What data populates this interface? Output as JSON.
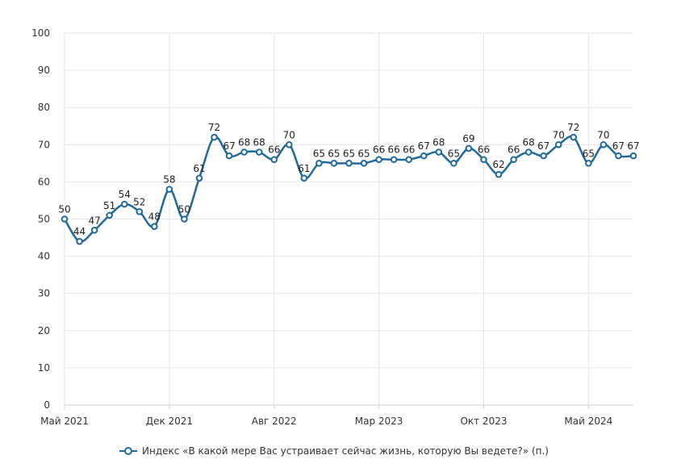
{
  "chart_data": {
    "type": "line",
    "title": "",
    "xlabel": "",
    "ylabel": "",
    "ylim": [
      0,
      100
    ],
    "yticks": [
      0,
      10,
      20,
      30,
      40,
      50,
      60,
      70,
      80,
      90,
      100
    ],
    "grid": true,
    "legend_position": "bottom",
    "x_tick_labels": [
      {
        "index": 0,
        "label": "Май 2021"
      },
      {
        "index": 7,
        "label": "Дек 2021"
      },
      {
        "index": 14,
        "label": "Авг 2022"
      },
      {
        "index": 21,
        "label": "Мар 2023"
      },
      {
        "index": 28,
        "label": "Окт 2023"
      },
      {
        "index": 35,
        "label": "Май 2024"
      }
    ],
    "series": [
      {
        "name": "Индекс «В какой мере Вас устраивает сейчас жизнь, которую Вы ведете?» (п.)",
        "color": "#1f6a9a",
        "values": [
          50,
          44,
          47,
          51,
          54,
          52,
          48,
          58,
          50,
          61,
          72,
          67,
          68,
          68,
          66,
          70,
          61,
          65,
          65,
          65,
          65,
          66,
          66,
          66,
          67,
          68,
          65,
          69,
          66,
          62,
          66,
          68,
          67,
          70,
          72,
          65,
          70,
          67,
          67
        ]
      }
    ]
  }
}
